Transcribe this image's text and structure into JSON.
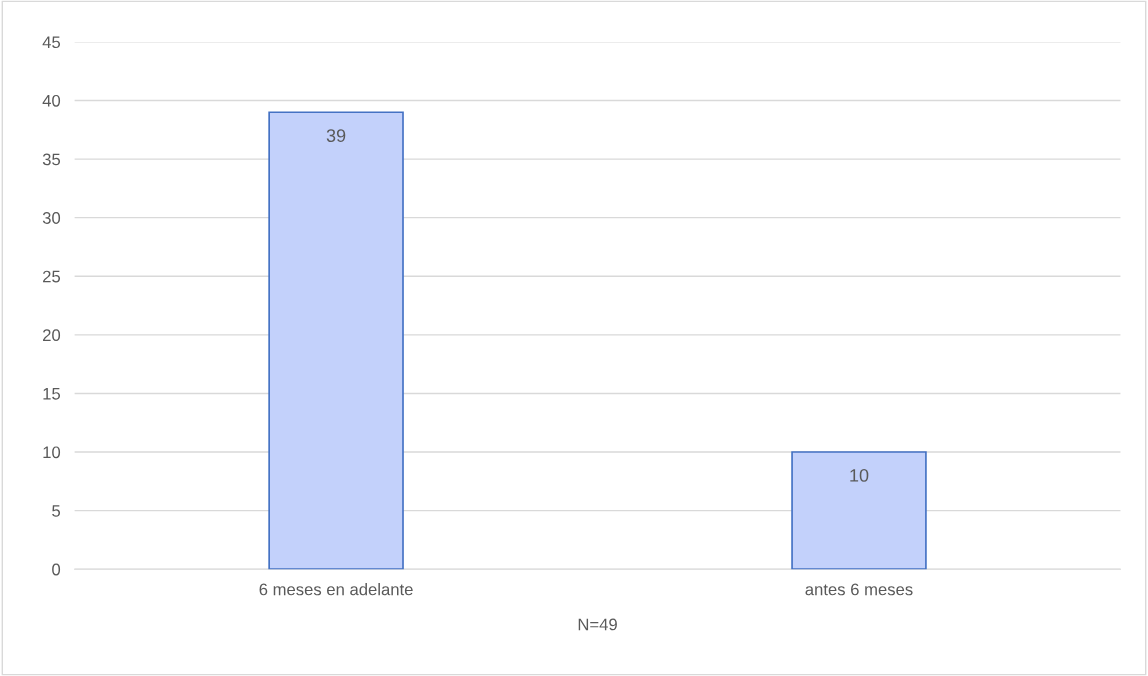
{
  "chart_data": {
    "type": "bar",
    "xlabel": "N=49",
    "categories": [
      "6 meses en adelante",
      "antes 6 meses"
    ],
    "values": [
      39,
      10
    ],
    "color": "#c3d1fb",
    "ylim": [
      0,
      45
    ],
    "yticks": [
      0,
      5,
      10,
      15,
      20,
      25,
      30,
      35,
      40,
      45
    ],
    "grid": "y",
    "data_labels": true
  }
}
